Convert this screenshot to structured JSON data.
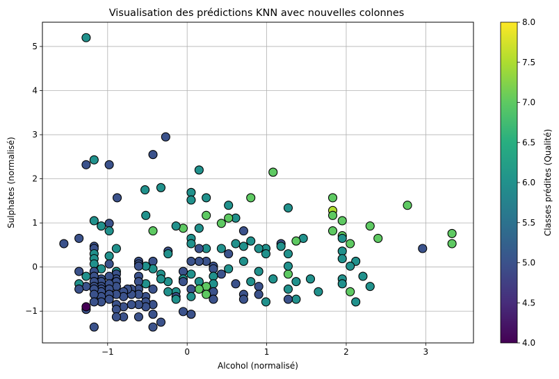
{
  "chart_data": {
    "type": "scatter",
    "title": "Visualisation des prédictions KNN avec nouvelles colonnes",
    "xlabel": "Alcohol (normalisé)",
    "ylabel": "Sulphates (normalisé)",
    "xlim": [
      -1.82,
      3.6
    ],
    "ylim": [
      -1.72,
      5.55
    ],
    "xticks": [
      -1,
      0,
      1,
      2,
      3
    ],
    "yticks": [
      -1,
      0,
      1,
      2,
      3,
      4,
      5
    ],
    "xtick_labels": [
      "−1",
      "0",
      "1",
      "2",
      "3"
    ],
    "ytick_labels": [
      "−1",
      "0",
      "1",
      "2",
      "3",
      "4",
      "5"
    ],
    "grid": true,
    "colorbar": {
      "label": "Classes prédites (Qualité)",
      "range": [
        4.0,
        8.0
      ],
      "colormap": "viridis",
      "ticks": [
        4.0,
        4.5,
        5.0,
        5.5,
        6.0,
        6.5,
        7.0,
        7.5,
        8.0
      ],
      "tick_labels": [
        "4.0",
        "4.5",
        "5.0",
        "5.5",
        "6.0",
        "6.5",
        "7.0",
        "7.5",
        "8.0"
      ]
    },
    "points": [
      {
        "x": -1.27,
        "y": 5.2,
        "c": 6
      },
      {
        "x": -1.27,
        "y": 2.32,
        "c": 5
      },
      {
        "x": -1.17,
        "y": 2.43,
        "c": 6
      },
      {
        "x": -0.98,
        "y": 2.32,
        "c": 5
      },
      {
        "x": -0.27,
        "y": 2.95,
        "c": 5
      },
      {
        "x": -0.43,
        "y": 2.55,
        "c": 5
      },
      {
        "x": 0.15,
        "y": 2.2,
        "c": 6
      },
      {
        "x": 1.08,
        "y": 2.15,
        "c": 7
      },
      {
        "x": -0.53,
        "y": 1.75,
        "c": 6
      },
      {
        "x": -0.33,
        "y": 1.8,
        "c": 6
      },
      {
        "x": 0.05,
        "y": 1.69,
        "c": 6
      },
      {
        "x": 0.05,
        "y": 1.52,
        "c": 6
      },
      {
        "x": 0.24,
        "y": 1.57,
        "c": 6
      },
      {
        "x": -0.88,
        "y": 1.57,
        "c": 5
      },
      {
        "x": 0.8,
        "y": 1.57,
        "c": 7
      },
      {
        "x": 1.27,
        "y": 1.34,
        "c": 6
      },
      {
        "x": 0.52,
        "y": 1.4,
        "c": 6
      },
      {
        "x": 1.83,
        "y": 1.57,
        "c": 7
      },
      {
        "x": 1.83,
        "y": 1.28,
        "c": 7.5
      },
      {
        "x": 2.77,
        "y": 1.4,
        "c": 7
      },
      {
        "x": 1.83,
        "y": 1.17,
        "c": 7
      },
      {
        "x": 1.95,
        "y": 1.05,
        "c": 7
      },
      {
        "x": 2.3,
        "y": 0.93,
        "c": 7
      },
      {
        "x": 3.33,
        "y": 0.76,
        "c": 7
      },
      {
        "x": 3.33,
        "y": 0.53,
        "c": 7
      },
      {
        "x": 2.4,
        "y": 0.65,
        "c": 7
      },
      {
        "x": 2.96,
        "y": 0.42,
        "c": 5
      },
      {
        "x": 1.83,
        "y": 0.82,
        "c": 7
      },
      {
        "x": 1.95,
        "y": 0.71,
        "c": 7
      },
      {
        "x": 1.95,
        "y": 0.65,
        "c": 6
      },
      {
        "x": 2.05,
        "y": 0.53,
        "c": 7
      },
      {
        "x": 1.95,
        "y": 0.36,
        "c": 6
      },
      {
        "x": 1.95,
        "y": 0.19,
        "c": 6
      },
      {
        "x": 2.12,
        "y": 0.13,
        "c": 6
      },
      {
        "x": 2.05,
        "y": 0.02,
        "c": 6
      },
      {
        "x": 2.21,
        "y": -0.21,
        "c": 6
      },
      {
        "x": 1.95,
        "y": -0.27,
        "c": 6
      },
      {
        "x": 1.95,
        "y": -0.38,
        "c": 6
      },
      {
        "x": 2.3,
        "y": -0.44,
        "c": 6
      },
      {
        "x": 2.05,
        "y": -0.56,
        "c": 7
      },
      {
        "x": 2.12,
        "y": -0.79,
        "c": 6
      },
      {
        "x": 1.65,
        "y": -0.56,
        "c": 6
      },
      {
        "x": 1.55,
        "y": -0.27,
        "c": 6
      },
      {
        "x": 1.46,
        "y": 0.65,
        "c": 6
      },
      {
        "x": 1.37,
        "y": 0.59,
        "c": 7
      },
      {
        "x": 1.37,
        "y": -0.33,
        "c": 6
      },
      {
        "x": 1.37,
        "y": -0.73,
        "c": 6
      },
      {
        "x": 1.27,
        "y": -0.73,
        "c": 5
      },
      {
        "x": 1.27,
        "y": -0.5,
        "c": 6
      },
      {
        "x": 1.27,
        "y": -0.16,
        "c": 7
      },
      {
        "x": 1.27,
        "y": 0.02,
        "c": 6
      },
      {
        "x": 1.27,
        "y": 0.3,
        "c": 6
      },
      {
        "x": 1.18,
        "y": 0.53,
        "c": 5
      },
      {
        "x": 1.18,
        "y": 0.47,
        "c": 6
      },
      {
        "x": 1.08,
        "y": -0.27,
        "c": 6
      },
      {
        "x": 0.99,
        "y": -0.79,
        "c": 6
      },
      {
        "x": 0.99,
        "y": 0.42,
        "c": 6
      },
      {
        "x": 0.99,
        "y": 0.3,
        "c": 6
      },
      {
        "x": 0.9,
        "y": 0.42,
        "c": 6
      },
      {
        "x": 0.9,
        "y": -0.1,
        "c": 6
      },
      {
        "x": 0.9,
        "y": -0.44,
        "c": 5
      },
      {
        "x": 0.9,
        "y": -0.62,
        "c": 5
      },
      {
        "x": 0.8,
        "y": 0.59,
        "c": 6
      },
      {
        "x": 0.8,
        "y": -0.33,
        "c": 6
      },
      {
        "x": 0.71,
        "y": 0.82,
        "c": 5
      },
      {
        "x": 0.71,
        "y": 0.47,
        "c": 6
      },
      {
        "x": 0.71,
        "y": 0.13,
        "c": 6
      },
      {
        "x": 0.71,
        "y": -0.62,
        "c": 5
      },
      {
        "x": 0.71,
        "y": -0.73,
        "c": 5
      },
      {
        "x": 0.61,
        "y": 1.11,
        "c": 6
      },
      {
        "x": 0.61,
        "y": 0.53,
        "c": 6
      },
      {
        "x": 0.61,
        "y": -0.38,
        "c": 5
      },
      {
        "x": 0.52,
        "y": 1.11,
        "c": 7
      },
      {
        "x": 0.52,
        "y": 0.3,
        "c": 5
      },
      {
        "x": 0.52,
        "y": -0.04,
        "c": 6
      },
      {
        "x": 0.43,
        "y": 0.99,
        "c": 7
      },
      {
        "x": 0.43,
        "y": 0.42,
        "c": 6
      },
      {
        "x": 0.43,
        "y": -0.16,
        "c": 5
      },
      {
        "x": 0.33,
        "y": 0.02,
        "c": 5
      },
      {
        "x": 0.33,
        "y": -0.04,
        "c": 5
      },
      {
        "x": 0.33,
        "y": -0.21,
        "c": 6
      },
      {
        "x": 0.33,
        "y": -0.38,
        "c": 6
      },
      {
        "x": 0.33,
        "y": -0.56,
        "c": 5
      },
      {
        "x": 0.33,
        "y": -0.73,
        "c": 5
      },
      {
        "x": 0.24,
        "y": 1.17,
        "c": 7
      },
      {
        "x": 0.24,
        "y": 0.42,
        "c": 6
      },
      {
        "x": 0.24,
        "y": -0.44,
        "c": 7
      },
      {
        "x": 0.24,
        "y": -0.62,
        "c": 7
      },
      {
        "x": 0.24,
        "y": 0.13,
        "c": 5
      },
      {
        "x": 0.15,
        "y": 0.88,
        "c": 6
      },
      {
        "x": 0.15,
        "y": 0.42,
        "c": 5
      },
      {
        "x": 0.15,
        "y": 0.13,
        "c": 5
      },
      {
        "x": 0.15,
        "y": -0.33,
        "c": 6
      },
      {
        "x": 0.15,
        "y": -0.5,
        "c": 7
      },
      {
        "x": 0.05,
        "y": 0.65,
        "c": 6
      },
      {
        "x": 0.05,
        "y": 0.53,
        "c": 6
      },
      {
        "x": 0.05,
        "y": 0.13,
        "c": 5
      },
      {
        "x": 0.05,
        "y": -0.16,
        "c": 6
      },
      {
        "x": 0.05,
        "y": -0.5,
        "c": 5
      },
      {
        "x": 0.05,
        "y": -0.67,
        "c": 6
      },
      {
        "x": 0.05,
        "y": -1.07,
        "c": 5
      },
      {
        "x": -0.05,
        "y": 0.88,
        "c": 7
      },
      {
        "x": -0.05,
        "y": -0.1,
        "c": 5
      },
      {
        "x": -0.05,
        "y": -0.27,
        "c": 6
      },
      {
        "x": -0.05,
        "y": -0.33,
        "c": 5
      },
      {
        "x": -0.05,
        "y": -1.01,
        "c": 5
      },
      {
        "x": -0.14,
        "y": 0.93,
        "c": 6
      },
      {
        "x": -0.14,
        "y": -0.56,
        "c": 6
      },
      {
        "x": -0.14,
        "y": -0.67,
        "c": 5
      },
      {
        "x": -0.14,
        "y": -0.73,
        "c": 6
      },
      {
        "x": -0.24,
        "y": 0.36,
        "c": 5
      },
      {
        "x": -0.24,
        "y": 0.3,
        "c": 6
      },
      {
        "x": -0.24,
        "y": -0.33,
        "c": 6
      },
      {
        "x": -0.24,
        "y": -0.56,
        "c": 6
      },
      {
        "x": -0.33,
        "y": -0.16,
        "c": 6
      },
      {
        "x": -0.33,
        "y": -0.27,
        "c": 6
      },
      {
        "x": -0.33,
        "y": -1.25,
        "c": 5
      },
      {
        "x": -0.43,
        "y": 0.82,
        "c": 7
      },
      {
        "x": -0.43,
        "y": 0.13,
        "c": 5
      },
      {
        "x": -0.43,
        "y": -0.04,
        "c": 6
      },
      {
        "x": -0.43,
        "y": -0.5,
        "c": 5
      },
      {
        "x": -0.43,
        "y": -0.85,
        "c": 5
      },
      {
        "x": -0.43,
        "y": -1.07,
        "c": 5
      },
      {
        "x": -0.43,
        "y": -1.36,
        "c": 5
      },
      {
        "x": -0.52,
        "y": 1.17,
        "c": 6
      },
      {
        "x": -0.52,
        "y": 0.02,
        "c": 6
      },
      {
        "x": -0.52,
        "y": -0.38,
        "c": 6
      },
      {
        "x": -0.52,
        "y": -0.67,
        "c": 5
      },
      {
        "x": -0.52,
        "y": -0.79,
        "c": 5
      },
      {
        "x": -0.52,
        "y": -0.9,
        "c": 5
      },
      {
        "x": -0.61,
        "y": 0.13,
        "c": 5
      },
      {
        "x": -0.61,
        "y": 0.07,
        "c": 5
      },
      {
        "x": -0.61,
        "y": 0.02,
        "c": 5
      },
      {
        "x": -0.61,
        "y": -0.21,
        "c": 5
      },
      {
        "x": -0.61,
        "y": -0.33,
        "c": 5
      },
      {
        "x": -0.61,
        "y": -0.5,
        "c": 5
      },
      {
        "x": -0.61,
        "y": -0.62,
        "c": 5
      },
      {
        "x": -0.61,
        "y": -0.85,
        "c": 5
      },
      {
        "x": -0.61,
        "y": -1.13,
        "c": 5
      },
      {
        "x": -0.7,
        "y": -0.5,
        "c": 5
      },
      {
        "x": -0.7,
        "y": -0.62,
        "c": 5
      },
      {
        "x": -0.7,
        "y": -0.85,
        "c": 5
      },
      {
        "x": -0.75,
        "y": -0.5,
        "c": 5
      },
      {
        "x": -0.8,
        "y": -0.56,
        "c": 5
      },
      {
        "x": -0.8,
        "y": -0.67,
        "c": 5
      },
      {
        "x": -0.8,
        "y": -0.9,
        "c": 5
      },
      {
        "x": -0.8,
        "y": -1.13,
        "c": 5
      },
      {
        "x": -0.89,
        "y": 0.42,
        "c": 6
      },
      {
        "x": -0.89,
        "y": -0.1,
        "c": 6
      },
      {
        "x": -0.89,
        "y": -0.16,
        "c": 5
      },
      {
        "x": -0.89,
        "y": -0.27,
        "c": 5
      },
      {
        "x": -0.89,
        "y": -0.33,
        "c": 5
      },
      {
        "x": -0.89,
        "y": -0.44,
        "c": 5
      },
      {
        "x": -0.89,
        "y": -0.62,
        "c": 5
      },
      {
        "x": -0.89,
        "y": -0.85,
        "c": 5
      },
      {
        "x": -0.89,
        "y": -0.96,
        "c": 5
      },
      {
        "x": -0.89,
        "y": -1.13,
        "c": 5
      },
      {
        "x": -0.98,
        "y": 0.99,
        "c": 5
      },
      {
        "x": -0.98,
        "y": 0.82,
        "c": 6
      },
      {
        "x": -0.98,
        "y": 0.25,
        "c": 6
      },
      {
        "x": -0.98,
        "y": 0.07,
        "c": 5
      },
      {
        "x": -0.98,
        "y": -0.21,
        "c": 5
      },
      {
        "x": -0.98,
        "y": -0.38,
        "c": 5
      },
      {
        "x": -0.98,
        "y": -0.5,
        "c": 5
      },
      {
        "x": -0.98,
        "y": -0.62,
        "c": 5
      },
      {
        "x": -0.98,
        "y": -0.73,
        "c": 5
      },
      {
        "x": -1.08,
        "y": 0.93,
        "c": 6
      },
      {
        "x": -1.08,
        "y": -0.04,
        "c": 6
      },
      {
        "x": -1.08,
        "y": -0.27,
        "c": 5
      },
      {
        "x": -1.08,
        "y": -0.33,
        "c": 5
      },
      {
        "x": -1.08,
        "y": -0.44,
        "c": 5
      },
      {
        "x": -1.08,
        "y": -0.5,
        "c": 5
      },
      {
        "x": -1.08,
        "y": -0.56,
        "c": 5
      },
      {
        "x": -1.08,
        "y": -0.67,
        "c": 5
      },
      {
        "x": -1.08,
        "y": -0.79,
        "c": 5
      },
      {
        "x": -1.17,
        "y": 1.05,
        "c": 6
      },
      {
        "x": -1.17,
        "y": 0.47,
        "c": 5
      },
      {
        "x": -1.17,
        "y": 0.42,
        "c": 5
      },
      {
        "x": -1.17,
        "y": 0.3,
        "c": 6
      },
      {
        "x": -1.17,
        "y": 0.19,
        "c": 6
      },
      {
        "x": -1.17,
        "y": 0.07,
        "c": 6
      },
      {
        "x": -1.17,
        "y": -0.1,
        "c": 5
      },
      {
        "x": -1.17,
        "y": -0.21,
        "c": 5
      },
      {
        "x": -1.17,
        "y": -0.33,
        "c": 5
      },
      {
        "x": -1.17,
        "y": -0.44,
        "c": 5
      },
      {
        "x": -1.17,
        "y": -0.5,
        "c": 5
      },
      {
        "x": -1.17,
        "y": -0.62,
        "c": 5
      },
      {
        "x": -1.17,
        "y": -0.79,
        "c": 5
      },
      {
        "x": -1.17,
        "y": -1.36,
        "c": 5
      },
      {
        "x": -1.27,
        "y": -0.21,
        "c": 6
      },
      {
        "x": -1.27,
        "y": -0.44,
        "c": 5
      },
      {
        "x": -1.27,
        "y": -0.96,
        "c": 5
      },
      {
        "x": -1.27,
        "y": -0.9,
        "c": 4
      },
      {
        "x": -1.36,
        "y": 0.65,
        "c": 5
      },
      {
        "x": -1.36,
        "y": -0.1,
        "c": 5
      },
      {
        "x": -1.36,
        "y": -0.38,
        "c": 6
      },
      {
        "x": -1.36,
        "y": -0.5,
        "c": 5
      },
      {
        "x": -1.55,
        "y": 0.53,
        "c": 5
      }
    ]
  }
}
